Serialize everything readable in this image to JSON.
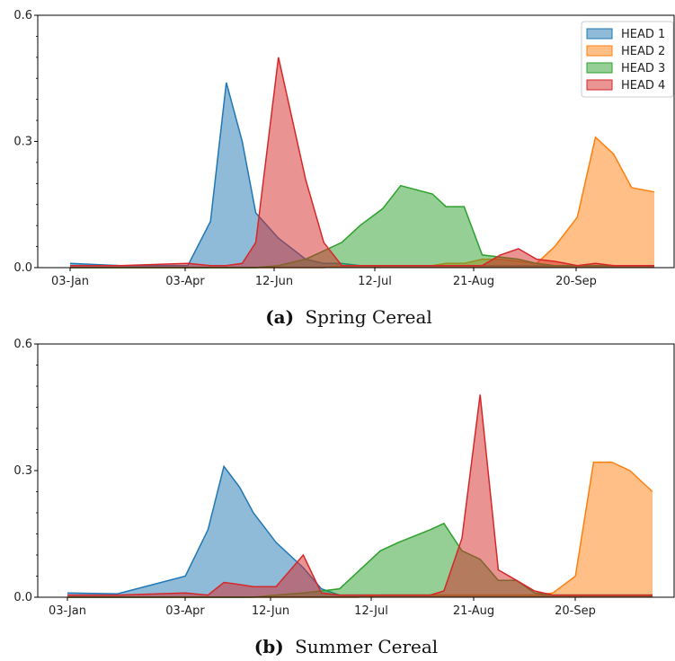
{
  "chart_data": [
    {
      "type": "area",
      "caption_letter": "(a)",
      "caption_text": "Spring Cereal",
      "categories": [
        "03-Jan",
        "03-Apr",
        "12-Jun",
        "12-Jul",
        "21-Aug",
        "20-Sep"
      ],
      "x": [
        0,
        1.1,
        2.6,
        3.1,
        3.45,
        3.8,
        4.1,
        4.6,
        5.2,
        5.6,
        6.0,
        6.4,
        6.9,
        7.3,
        8.0,
        8.3,
        8.7,
        9.1,
        9.5,
        9.9,
        10.3,
        10.7,
        11.2,
        11.6,
        12.0,
        12.4,
        12.9
      ],
      "series": [
        {
          "name": "HEAD 1",
          "color": "#1f77b4",
          "values": [
            0.01,
            0.005,
            0.005,
            0.11,
            0.44,
            0.3,
            0.13,
            0.07,
            0.02,
            0.01,
            0.01,
            0.005,
            0.005,
            0.005,
            0.005,
            0.005,
            0.005,
            0.005,
            0.005,
            0.005,
            0.005,
            0.005,
            0.005,
            0.005,
            0.005,
            0.005,
            0.005
          ]
        },
        {
          "name": "HEAD 2",
          "color": "#ff7f0e",
          "values": [
            0.0,
            0.0,
            0.0,
            0.0,
            0.0,
            0.0,
            0.0,
            0.0,
            0.0,
            0.0,
            0.005,
            0.005,
            0.005,
            0.005,
            0.005,
            0.01,
            0.01,
            0.02,
            0.02,
            0.015,
            0.01,
            0.05,
            0.12,
            0.31,
            0.27,
            0.19,
            0.18
          ]
        },
        {
          "name": "HEAD 3",
          "color": "#2ca02c",
          "values": [
            0.0,
            0.0,
            0.0,
            0.0,
            0.0,
            0.0,
            0.0,
            0.005,
            0.02,
            0.04,
            0.06,
            0.1,
            0.14,
            0.195,
            0.175,
            0.145,
            0.145,
            0.03,
            0.025,
            0.02,
            0.01,
            0.005,
            0.005,
            0.005,
            0.005,
            0.005,
            0.005
          ]
        },
        {
          "name": "HEAD 4",
          "color": "#d62728",
          "values": [
            0.005,
            0.005,
            0.01,
            0.005,
            0.005,
            0.01,
            0.06,
            0.5,
            0.21,
            0.06,
            0.005,
            0.005,
            0.005,
            0.005,
            0.005,
            0.005,
            0.005,
            0.005,
            0.03,
            0.045,
            0.02,
            0.015,
            0.005,
            0.01,
            0.005,
            0.005,
            0.005
          ]
        }
      ],
      "yticks": [
        "0.0",
        "0.3",
        "0.6"
      ],
      "ylim": [
        0,
        0.6
      ],
      "legend": "top-right"
    },
    {
      "type": "area",
      "caption_letter": "(b)",
      "caption_text": "Summer Cereal",
      "categories": [
        "03-Jan",
        "03-Apr",
        "12-Jun",
        "12-Jul",
        "21-Aug",
        "20-Sep"
      ],
      "x": [
        0,
        1.1,
        2.6,
        3.1,
        3.45,
        3.8,
        4.1,
        4.6,
        5.2,
        5.6,
        6.0,
        6.4,
        6.9,
        7.3,
        8.0,
        8.3,
        8.7,
        9.1,
        9.5,
        9.9,
        10.3,
        10.7,
        11.2,
        11.6,
        12.0,
        12.4,
        12.9
      ],
      "series": [
        {
          "name": "HEAD 1",
          "color": "#1f77b4",
          "values": [
            0.01,
            0.008,
            0.05,
            0.16,
            0.31,
            0.26,
            0.2,
            0.13,
            0.07,
            0.02,
            0.005,
            0.005,
            0.005,
            0.005,
            0.005,
            0.005,
            0.005,
            0.005,
            0.005,
            0.005,
            0.005,
            0.005,
            0.005,
            0.005,
            0.005,
            0.005,
            0.005
          ]
        },
        {
          "name": "HEAD 2",
          "color": "#ff7f0e",
          "values": [
            0.0,
            0.0,
            0.0,
            0.0,
            0.0,
            0.0,
            0.0,
            0.0,
            0.0,
            0.0,
            0.0,
            0.0,
            0.005,
            0.005,
            0.005,
            0.005,
            0.005,
            0.005,
            0.005,
            0.005,
            0.005,
            0.01,
            0.05,
            0.32,
            0.32,
            0.3,
            0.25
          ]
        },
        {
          "name": "HEAD 3",
          "color": "#2ca02c",
          "values": [
            0.0,
            0.0,
            0.0,
            0.0,
            0.0,
            0.0,
            0.0,
            0.005,
            0.01,
            0.015,
            0.02,
            0.06,
            0.11,
            0.13,
            0.16,
            0.175,
            0.11,
            0.09,
            0.04,
            0.04,
            0.01,
            0.005,
            0.005,
            0.005,
            0.005,
            0.005,
            0.005
          ]
        },
        {
          "name": "HEAD 4",
          "color": "#d62728",
          "values": [
            0.005,
            0.005,
            0.01,
            0.005,
            0.035,
            0.03,
            0.025,
            0.025,
            0.1,
            0.01,
            0.005,
            0.005,
            0.005,
            0.005,
            0.005,
            0.015,
            0.14,
            0.48,
            0.065,
            0.04,
            0.015,
            0.005,
            0.005,
            0.005,
            0.005,
            0.005,
            0.005
          ]
        }
      ],
      "yticks": [
        "0.0",
        "0.3",
        "0.6"
      ],
      "ylim": [
        0,
        0.6
      ]
    }
  ]
}
